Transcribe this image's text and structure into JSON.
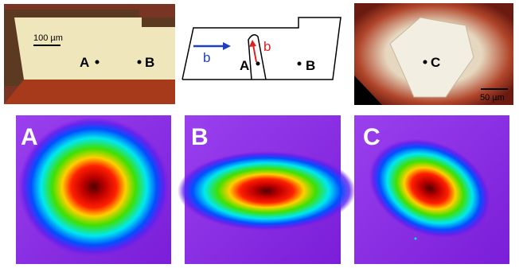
{
  "top": {
    "left": {
      "scale_bar": "100 µm",
      "points": [
        "A",
        "B"
      ]
    },
    "middle": {
      "arrow_labels": [
        "b",
        "b"
      ],
      "points": [
        "A",
        "B"
      ]
    },
    "right": {
      "point": "C",
      "scale_bar": "50 µm"
    }
  },
  "bottom": {
    "panels": [
      {
        "label": "A"
      },
      {
        "label": "B"
      },
      {
        "label": "C"
      }
    ]
  }
}
